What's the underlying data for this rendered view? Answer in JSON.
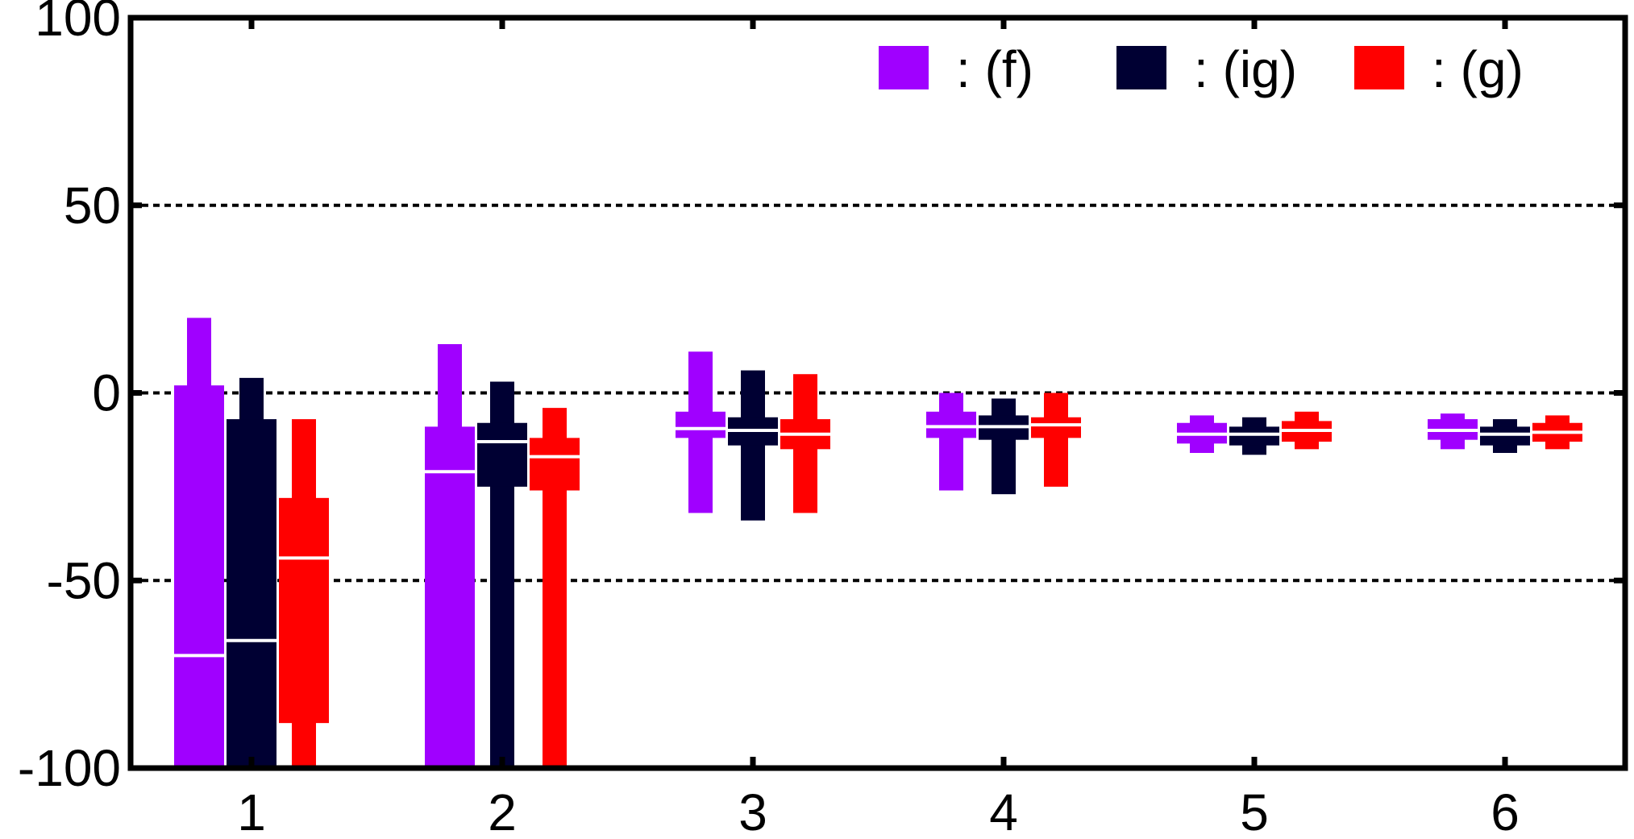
{
  "chart_data": {
    "type": "bar",
    "subtype": "box-like range bars",
    "title": "",
    "xlabel": "",
    "ylabel": "",
    "ylim": [
      -100,
      100
    ],
    "yticks": [
      -100,
      -50,
      0,
      50,
      100
    ],
    "ytick_labels": [
      "-100",
      "-50",
      "0",
      "50",
      "100"
    ],
    "categories": [
      "1",
      "2",
      "3",
      "4",
      "5",
      "6"
    ],
    "grid": "dotted horizontal at -50, 0, 50",
    "legend_position": "top-right",
    "series": [
      {
        "name": ": (f)",
        "color": "#a000ff",
        "groups": [
          {
            "whisker_low": -100,
            "box_low": -100,
            "median": -70,
            "box_high": 2,
            "whisker_high": 20
          },
          {
            "whisker_low": -100,
            "box_low": -100,
            "median": -21,
            "box_high": -9,
            "whisker_high": 13
          },
          {
            "whisker_low": -32,
            "box_low": -12,
            "median": -9.5,
            "box_high": -5,
            "whisker_high": 11
          },
          {
            "whisker_low": -26,
            "box_low": -12,
            "median": -9,
            "box_high": -5,
            "whisker_high": 0
          },
          {
            "whisker_low": -16,
            "box_low": -13.5,
            "median": -11,
            "box_high": -8,
            "whisker_high": -6
          },
          {
            "whisker_low": -15,
            "box_low": -12.5,
            "median": -10,
            "box_high": -7,
            "whisker_high": -5.5
          }
        ]
      },
      {
        "name": ": (ig)",
        "color": "#000033",
        "groups": [
          {
            "whisker_low": -100,
            "box_low": -100,
            "median": -66,
            "box_high": -7,
            "whisker_high": 4
          },
          {
            "whisker_low": -100,
            "box_low": -25,
            "median": -13,
            "box_high": -8,
            "whisker_high": 3
          },
          {
            "whisker_low": -34,
            "box_low": -14,
            "median": -10,
            "box_high": -6.5,
            "whisker_high": 6
          },
          {
            "whisker_low": -27,
            "box_low": -12.5,
            "median": -9,
            "box_high": -6,
            "whisker_high": -1.5
          },
          {
            "whisker_low": -16.5,
            "box_low": -14,
            "median": -11,
            "box_high": -9,
            "whisker_high": -6.5
          },
          {
            "whisker_low": -16,
            "box_low": -14,
            "median": -11,
            "box_high": -9,
            "whisker_high": -7
          }
        ]
      },
      {
        "name": ": (g)",
        "color": "#ff0000",
        "groups": [
          {
            "whisker_low": -100,
            "box_low": -88,
            "median": -44,
            "box_high": -28,
            "whisker_high": -7
          },
          {
            "whisker_low": -100,
            "box_low": -26,
            "median": -17,
            "box_high": -12,
            "whisker_high": -4
          },
          {
            "whisker_low": -32,
            "box_low": -15,
            "median": -11,
            "box_high": -7,
            "whisker_high": 5
          },
          {
            "whisker_low": -25,
            "box_low": -12,
            "median": -8.5,
            "box_high": -6.5,
            "whisker_high": 0
          },
          {
            "whisker_low": -15,
            "box_low": -13,
            "median": -10,
            "box_high": -7.5,
            "whisker_high": -5
          },
          {
            "whisker_low": -15,
            "box_low": -13,
            "median": -10.5,
            "box_high": -8,
            "whisker_high": -6
          }
        ]
      }
    ]
  }
}
